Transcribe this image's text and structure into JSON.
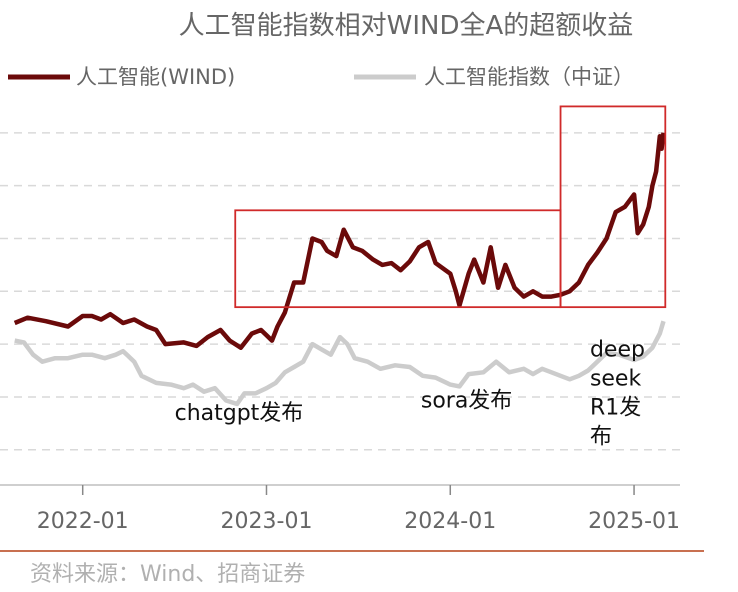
{
  "chart_data": {
    "type": "line",
    "title": "人工智能指数相对WIND全A的超额收益",
    "xlabel": "",
    "ylabel": "",
    "series": [
      {
        "name": "人工智能(WIND)",
        "color": "#6b0a0a",
        "values": [
          [
            2021.63,
            0.92
          ],
          [
            2021.7,
            0.95
          ],
          [
            2021.8,
            0.93
          ],
          [
            2021.92,
            0.9
          ],
          [
            2022.0,
            0.96
          ],
          [
            2022.05,
            0.96
          ],
          [
            2022.1,
            0.94
          ],
          [
            2022.15,
            0.97
          ],
          [
            2022.22,
            0.92
          ],
          [
            2022.28,
            0.94
          ],
          [
            2022.35,
            0.9
          ],
          [
            2022.4,
            0.88
          ],
          [
            2022.45,
            0.8
          ],
          [
            2022.55,
            0.81
          ],
          [
            2022.62,
            0.79
          ],
          [
            2022.68,
            0.84
          ],
          [
            2022.75,
            0.88
          ],
          [
            2022.8,
            0.82
          ],
          [
            2022.86,
            0.78
          ],
          [
            2022.92,
            0.86
          ],
          [
            2022.97,
            0.88
          ],
          [
            2023.0,
            0.85
          ],
          [
            2023.03,
            0.82
          ],
          [
            2023.06,
            0.9
          ],
          [
            2023.1,
            0.98
          ],
          [
            2023.15,
            1.15
          ],
          [
            2023.2,
            1.15
          ],
          [
            2023.25,
            1.4
          ],
          [
            2023.3,
            1.38
          ],
          [
            2023.33,
            1.33
          ],
          [
            2023.38,
            1.3
          ],
          [
            2023.42,
            1.45
          ],
          [
            2023.47,
            1.35
          ],
          [
            2023.52,
            1.33
          ],
          [
            2023.58,
            1.28
          ],
          [
            2023.63,
            1.25
          ],
          [
            2023.68,
            1.26
          ],
          [
            2023.73,
            1.22
          ],
          [
            2023.78,
            1.27
          ],
          [
            2023.83,
            1.35
          ],
          [
            2023.88,
            1.38
          ],
          [
            2023.92,
            1.26
          ],
          [
            2024.0,
            1.2
          ],
          [
            2024.03,
            1.1
          ],
          [
            2024.05,
            1.02
          ],
          [
            2024.1,
            1.2
          ],
          [
            2024.13,
            1.28
          ],
          [
            2024.18,
            1.15
          ],
          [
            2024.22,
            1.35
          ],
          [
            2024.26,
            1.12
          ],
          [
            2024.3,
            1.25
          ],
          [
            2024.35,
            1.12
          ],
          [
            2024.4,
            1.07
          ],
          [
            2024.45,
            1.1
          ],
          [
            2024.5,
            1.07
          ],
          [
            2024.55,
            1.07
          ],
          [
            2024.6,
            1.08
          ],
          [
            2024.65,
            1.1
          ],
          [
            2024.7,
            1.15
          ],
          [
            2024.75,
            1.25
          ],
          [
            2024.8,
            1.32
          ],
          [
            2024.85,
            1.4
          ],
          [
            2024.9,
            1.55
          ],
          [
            2024.95,
            1.58
          ],
          [
            2025.0,
            1.65
          ],
          [
            2025.02,
            1.43
          ],
          [
            2025.05,
            1.48
          ],
          [
            2025.08,
            1.58
          ],
          [
            2025.1,
            1.7
          ],
          [
            2025.12,
            1.78
          ],
          [
            2025.14,
            1.98
          ],
          [
            2025.15,
            1.91
          ],
          [
            2025.16,
            2.0
          ]
        ]
      },
      {
        "name": "人工智能指数（中证）",
        "color": "#cccccc",
        "values": [
          [
            2021.63,
            0.82
          ],
          [
            2021.68,
            0.81
          ],
          [
            2021.73,
            0.74
          ],
          [
            2021.78,
            0.7
          ],
          [
            2021.85,
            0.72
          ],
          [
            2021.92,
            0.72
          ],
          [
            2022.0,
            0.74
          ],
          [
            2022.05,
            0.74
          ],
          [
            2022.12,
            0.72
          ],
          [
            2022.18,
            0.74
          ],
          [
            2022.22,
            0.76
          ],
          [
            2022.28,
            0.7
          ],
          [
            2022.32,
            0.62
          ],
          [
            2022.4,
            0.58
          ],
          [
            2022.48,
            0.57
          ],
          [
            2022.55,
            0.55
          ],
          [
            2022.6,
            0.57
          ],
          [
            2022.66,
            0.53
          ],
          [
            2022.72,
            0.55
          ],
          [
            2022.78,
            0.48
          ],
          [
            2022.84,
            0.46
          ],
          [
            2022.88,
            0.52
          ],
          [
            2022.94,
            0.52
          ],
          [
            2023.0,
            0.55
          ],
          [
            2023.05,
            0.58
          ],
          [
            2023.1,
            0.64
          ],
          [
            2023.15,
            0.67
          ],
          [
            2023.2,
            0.7
          ],
          [
            2023.25,
            0.8
          ],
          [
            2023.3,
            0.77
          ],
          [
            2023.35,
            0.74
          ],
          [
            2023.4,
            0.84
          ],
          [
            2023.44,
            0.8
          ],
          [
            2023.48,
            0.72
          ],
          [
            2023.55,
            0.7
          ],
          [
            2023.62,
            0.66
          ],
          [
            2023.7,
            0.68
          ],
          [
            2023.78,
            0.67
          ],
          [
            2023.85,
            0.62
          ],
          [
            2023.92,
            0.61
          ],
          [
            2024.0,
            0.57
          ],
          [
            2024.05,
            0.56
          ],
          [
            2024.1,
            0.63
          ],
          [
            2024.18,
            0.64
          ],
          [
            2024.25,
            0.7
          ],
          [
            2024.32,
            0.64
          ],
          [
            2024.4,
            0.66
          ],
          [
            2024.45,
            0.63
          ],
          [
            2024.5,
            0.66
          ],
          [
            2024.55,
            0.64
          ],
          [
            2024.6,
            0.62
          ],
          [
            2024.65,
            0.6
          ],
          [
            2024.7,
            0.62
          ],
          [
            2024.75,
            0.65
          ],
          [
            2024.8,
            0.7
          ],
          [
            2024.85,
            0.75
          ],
          [
            2024.92,
            0.74
          ],
          [
            2025.0,
            0.71
          ],
          [
            2025.05,
            0.73
          ],
          [
            2025.1,
            0.78
          ],
          [
            2025.14,
            0.86
          ],
          [
            2025.16,
            0.93
          ]
        ]
      }
    ],
    "xlim": [
      2021.55,
      2025.25
    ],
    "ylim": [
      0.0,
      2.3
    ],
    "x_ticks": [
      {
        "value": 2022.0,
        "label": "2022-01"
      },
      {
        "value": 2023.0,
        "label": "2023-01"
      },
      {
        "value": 2024.0,
        "label": "2024-01"
      },
      {
        "value": 2025.0,
        "label": "2025-01"
      }
    ],
    "y_gridlines": [
      0.2,
      0.5,
      0.8,
      1.1,
      1.4,
      1.7,
      2.0
    ],
    "grid": "horizontal dashed",
    "legend": "top",
    "highlight_boxes": [
      {
        "x": [
          2022.83,
          2024.6
        ],
        "y": [
          1.01,
          1.56
        ]
      },
      {
        "x": [
          2024.6,
          2025.17
        ],
        "y": [
          1.01,
          2.15
        ]
      }
    ],
    "annotations": [
      {
        "text": [
          "chatgpt发布"
        ],
        "x": 2022.5,
        "y": 0.37
      },
      {
        "text": [
          "sora发布"
        ],
        "x": 2023.84,
        "y": 0.44
      },
      {
        "text": [
          "deep",
          "seek",
          "R1发",
          "布"
        ],
        "x": 2024.76,
        "y": 0.73
      }
    ]
  },
  "footer": {
    "source": "资料来源：Wind、招商证券"
  }
}
